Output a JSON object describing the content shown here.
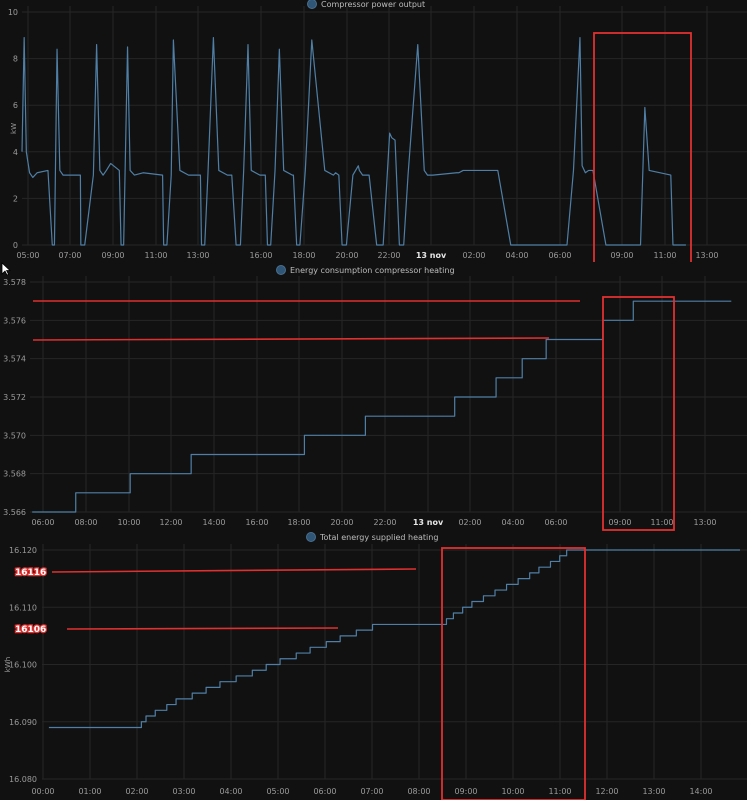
{
  "colors": {
    "background": "#111111",
    "line": "#4f7fa6",
    "grid": "#262626",
    "highlight": "#e0302f",
    "legend_dot": "#2f5577"
  },
  "chart_data": [
    {
      "type": "line",
      "legend": "Compressor power output",
      "ylabel": "kW",
      "ylim": [
        0,
        10
      ],
      "yticks": [
        "0",
        "2",
        "4",
        "6",
        "8",
        "10"
      ],
      "xticks": [
        "05:00",
        "07:00",
        "09:00",
        "11:00",
        "13:00",
        "16:00",
        "18:00",
        "20:00",
        "22:00",
        "13 nov",
        "02:00",
        "04:00",
        "06:00",
        "09:00",
        "11:00",
        "13:00"
      ],
      "bold_tick": "13 nov",
      "series": [
        {
          "x": [
            5.0,
            5.1,
            5.2,
            5.35,
            5.5,
            5.7,
            6.2,
            6.4,
            6.5,
            6.62,
            6.75,
            6.9,
            7.2,
            7.7,
            7.72,
            7.9,
            8.3,
            8.45,
            8.6,
            8.75,
            8.9,
            9.1,
            9.5,
            9.58,
            9.7,
            9.88,
            10.0,
            10.2,
            10.6,
            11.5,
            11.55,
            11.7,
            11.9,
            12.0,
            12.3,
            12.7,
            13.25,
            13.3,
            13.45,
            13.6,
            13.85,
            14.1,
            14.5,
            14.7,
            14.9,
            15.1,
            15.25,
            15.45,
            15.6,
            16.0,
            16.25,
            16.35,
            16.5,
            16.7,
            16.9,
            17.1,
            17.5,
            17.55,
            17.7,
            17.85,
            18.1,
            18.4,
            19.0,
            19.4,
            19.5,
            19.65,
            19.8,
            20.0,
            20.3,
            20.55,
            20.6,
            20.75,
            21.05,
            21.4,
            21.7,
            22.0,
            22.1,
            22.25,
            22.45,
            22.65,
            22.85,
            23.3,
            23.6,
            23.75,
            24.0,
            25.1,
            25.2,
            25.4,
            26.6,
            27.0,
            27.6,
            30.2,
            30.5,
            30.8,
            30.9,
            31.05,
            31.2,
            31.4,
            32.0,
            33.3,
            33.6,
            33.8,
            34.0,
            35.0,
            35.1,
            35.3,
            35.5,
            35.7
          ],
          "y": [
            4.0,
            8.9,
            4.0,
            3.1,
            2.9,
            3.1,
            3.2,
            0,
            0,
            8.4,
            3.2,
            3.0,
            3.0,
            3.0,
            0,
            0,
            3.0,
            8.6,
            3.2,
            3.0,
            3.2,
            3.5,
            3.2,
            0,
            0,
            8.5,
            3.2,
            3.0,
            3.1,
            3.0,
            0,
            0,
            3.0,
            8.8,
            3.2,
            3.0,
            3.0,
            0,
            0,
            3.1,
            8.9,
            3.2,
            3.0,
            3.0,
            0,
            0,
            3.2,
            8.6,
            3.2,
            3.0,
            3.0,
            0,
            0,
            3.2,
            8.4,
            3.2,
            3.0,
            3.0,
            0,
            0,
            3.2,
            8.8,
            3.2,
            3.0,
            3.1,
            3.0,
            0,
            0,
            3.0,
            3.4,
            3.2,
            3.0,
            3.0,
            0,
            0,
            4.8,
            4.6,
            4.5,
            0,
            0,
            3.0,
            8.6,
            3.2,
            3.0,
            3.0,
            3.1,
            3.1,
            3.2,
            3.2,
            3.2,
            0,
            0,
            3.2,
            8.9,
            3.4,
            3.1,
            3.2,
            3.2,
            0,
            0,
            0,
            5.9,
            3.2,
            3.0,
            0,
            0,
            0,
            0
          ]
        }
      ],
      "xlim": [
        5.0,
        38.2
      ]
    },
    {
      "type": "line",
      "legend": "Energy consumption compressor heating",
      "ylabel": "",
      "ylim": [
        3.566,
        3.578
      ],
      "yticks": [
        "3.566",
        "3.568",
        "3.570",
        "3.572",
        "3.574",
        "3.576",
        "3.578"
      ],
      "xticks": [
        "06:00",
        "08:00",
        "10:00",
        "12:00",
        "14:00",
        "16:00",
        "18:00",
        "20:00",
        "22:00",
        "13 nov",
        "02:00",
        "04:00",
        "06:00",
        "09:00",
        "11:00",
        "13:00"
      ],
      "bold_tick": "13 nov",
      "series": [
        {
          "x": [
            6.0,
            8.0,
            10.5,
            13.3,
            18.5,
            21.3,
            25.4,
            27.3,
            28.5,
            29.6,
            32.2,
            33.6,
            38.1
          ],
          "y": [
            3.566,
            3.567,
            3.568,
            3.569,
            3.57,
            3.571,
            3.572,
            3.573,
            3.574,
            3.575,
            3.576,
            3.577,
            3.577
          ]
        }
      ],
      "xlim": [
        5.9,
        38.5
      ]
    },
    {
      "type": "line",
      "legend": "Total energy supplied heating",
      "ylabel": "kWh",
      "ylim": [
        16.08,
        16.12
      ],
      "yticks": [
        "16.080",
        "16.090",
        "16.100",
        "16.110",
        "16.120"
      ],
      "xticks": [
        "00:00",
        "01:00",
        "02:00",
        "03:00",
        "04:00",
        "05:00",
        "06:00",
        "07:00",
        "08:00",
        "09:00",
        "10:00",
        "11:00",
        "12:00",
        "13:00",
        "14:00"
      ],
      "bold_tick": "",
      "series": [
        {
          "x": [
            0.0,
            2.0,
            2.1,
            2.3,
            2.55,
            2.75,
            3.1,
            3.4,
            3.7,
            4.05,
            4.4,
            4.7,
            5.0,
            5.35,
            5.65,
            6.0,
            6.3,
            6.65,
            7.0,
            8.6,
            8.75,
            8.95,
            9.15,
            9.4,
            9.65,
            9.9,
            10.15,
            10.4,
            10.6,
            10.85,
            11.05,
            11.2,
            14.95
          ],
          "y": [
            16.089,
            16.09,
            16.091,
            16.092,
            16.093,
            16.094,
            16.095,
            16.096,
            16.097,
            16.098,
            16.099,
            16.1,
            16.101,
            16.102,
            16.103,
            16.104,
            16.105,
            16.106,
            16.107,
            16.108,
            16.109,
            16.11,
            16.111,
            16.112,
            16.113,
            16.114,
            16.115,
            16.116,
            16.117,
            16.118,
            16.119,
            16.12,
            16.12
          ]
        }
      ],
      "xlim": [
        -0.15,
        14.95
      ]
    }
  ],
  "annotations": {
    "label_high": "16116",
    "label_low": "16106"
  }
}
